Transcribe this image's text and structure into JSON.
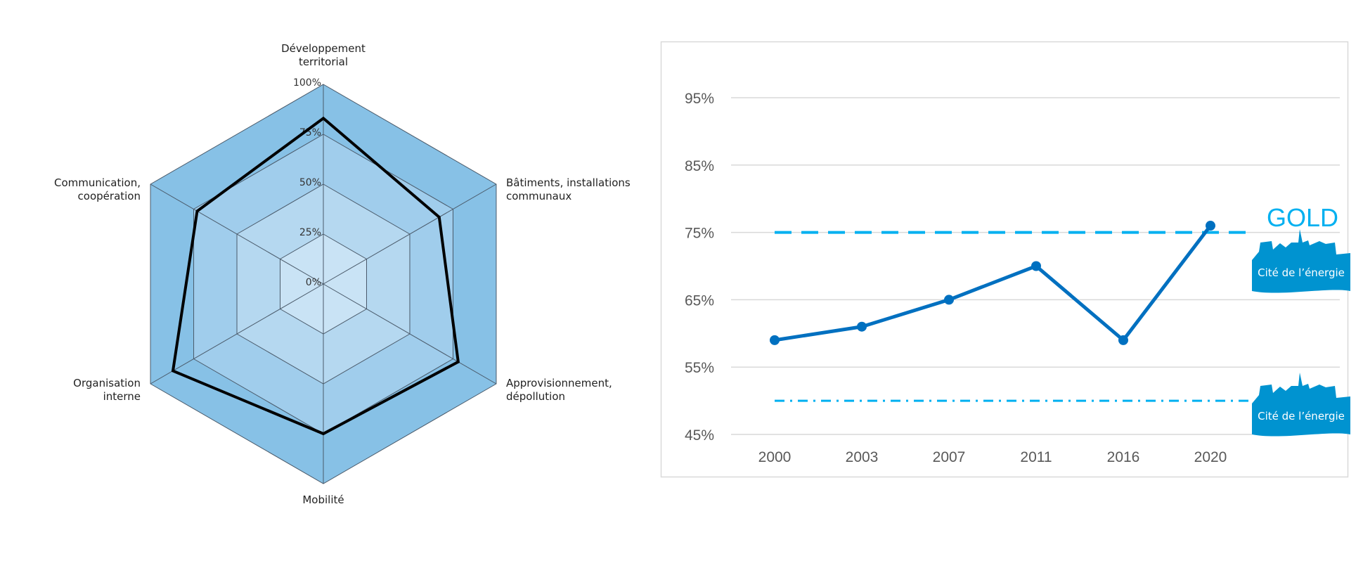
{
  "chart_data": [
    {
      "type": "radar",
      "axes": [
        "Développement territorial",
        "Bâtiments, installations communaux",
        "Approvisionnement, dépollution",
        "Mobilité",
        "Organisation interne",
        "Communication, coopération"
      ],
      "axis_label_lines": [
        [
          "Développement",
          "territorial"
        ],
        [
          "Bâtiments, installations",
          "communaux"
        ],
        [
          "Approvisionnement,",
          "dépollution"
        ],
        [
          "Mobilité"
        ],
        [
          "Organisation",
          "interne"
        ],
        [
          "Communication,",
          "coopération"
        ]
      ],
      "ticks": [
        "0%",
        "25%",
        "50%",
        "75%",
        "100%"
      ],
      "values": [
        83,
        67,
        78,
        75,
        87,
        73
      ],
      "range": [
        0,
        100
      ]
    },
    {
      "type": "line",
      "categories": [
        "2000",
        "2003",
        "2007",
        "2011",
        "2016",
        "2020"
      ],
      "values": [
        59,
        61,
        65,
        70,
        59,
        76
      ],
      "ylim": [
        45,
        95
      ],
      "yticks": [
        "45%",
        "55%",
        "65%",
        "75%",
        "85%",
        "95%"
      ],
      "reference_lines": [
        {
          "value": 75,
          "style": "dashed",
          "label": "GOLD",
          "logo_text": "Cité de l’énergie"
        },
        {
          "value": 50,
          "style": "dash-dot",
          "logo_text": "Cité de l’énergie"
        }
      ],
      "colors": {
        "line": "#0070c0",
        "reference": "#00b0f0",
        "logo": "#0093d0"
      }
    }
  ]
}
